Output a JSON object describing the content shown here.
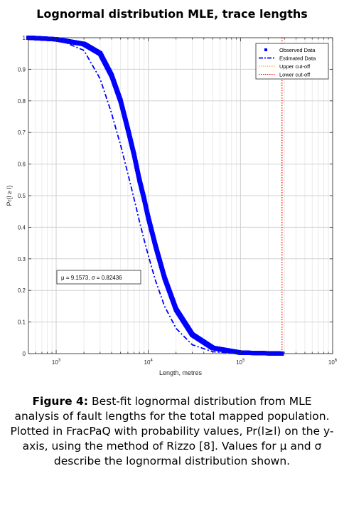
{
  "chart_data": {
    "type": "line",
    "title": "Lognormal distribution MLE, trace lengths",
    "xlabel": "Length, metres",
    "ylabel": "Pr(l ≥ l)",
    "xscale": "log",
    "xlim": [
      500,
      1000000
    ],
    "ylim": [
      0,
      1
    ],
    "x_ticks": [
      1000,
      10000,
      100000,
      1000000
    ],
    "x_tick_labels": [
      {
        "base": "10",
        "exp": "3"
      },
      {
        "base": "10",
        "exp": "4"
      },
      {
        "base": "10",
        "exp": "5"
      },
      {
        "base": "10",
        "exp": "6"
      }
    ],
    "y_ticks": [
      0,
      0.1,
      0.2,
      0.3,
      0.4,
      0.5,
      0.6,
      0.7,
      0.8,
      0.9,
      1
    ],
    "y_tick_labels": [
      "0",
      "0.1",
      "0.2",
      "0.3",
      "0.4",
      "0.5",
      "0.6",
      "0.7",
      "0.8",
      "0.9",
      "1"
    ],
    "grid": true,
    "legend_position": "top-right",
    "series": [
      {
        "name": "Observed Data",
        "style": "square-markers",
        "color": "#0000ff",
        "x": [
          500,
          1000,
          2000,
          3000,
          4000,
          5000,
          6000,
          7000,
          8000,
          9000,
          10000,
          12000,
          15000,
          20000,
          30000,
          50000,
          100000,
          200000,
          280000
        ],
        "y": [
          1.0,
          0.995,
          0.98,
          0.95,
          0.88,
          0.8,
          0.71,
          0.63,
          0.55,
          0.49,
          0.43,
          0.34,
          0.24,
          0.14,
          0.06,
          0.018,
          0.003,
          0.001,
          0.0
        ]
      },
      {
        "name": "Estimated Data",
        "style": "dash-dot",
        "color": "#0000ff",
        "x": [
          500,
          1000,
          2000,
          3000,
          4000,
          5000,
          6000,
          7000,
          8000,
          9000,
          10000,
          12000,
          15000,
          20000,
          30000,
          50000,
          100000
        ],
        "y": [
          1.0,
          0.997,
          0.96,
          0.87,
          0.76,
          0.66,
          0.57,
          0.49,
          0.42,
          0.36,
          0.31,
          0.23,
          0.15,
          0.08,
          0.028,
          0.006,
          0.0
        ]
      },
      {
        "name": "Upper cut-off",
        "style": "dotted-vertical",
        "color": "#ff9900",
        "x": [
          280000
        ]
      },
      {
        "name": "Lower cut-off",
        "style": "dotted-vertical",
        "color": "#ff0000",
        "x": [
          280000
        ]
      }
    ],
    "annotations": [
      {
        "text": "μ = 9.1573, σ = 0.82436"
      }
    ]
  },
  "caption": {
    "label": "Figure 4:",
    "text": " Best-fit lognormal distribution from MLE analysis of fault lengths for the total mapped population. Plotted in FracPaQ with probability values, Pr(l≥l) on the y-axis, using the method of Rizzo [8]. Values for μ and σ describe the lognormal distribution shown."
  }
}
